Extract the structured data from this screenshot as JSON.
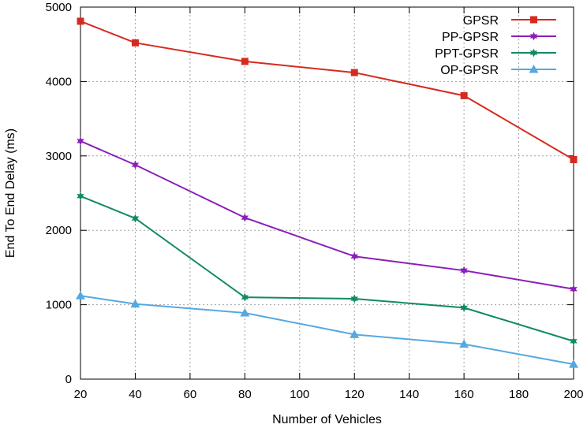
{
  "chart_data": {
    "type": "line",
    "title": "",
    "xlabel": "Number of Vehicles",
    "ylabel": "End To End Delay (ms)",
    "x_ticks": [
      20,
      40,
      60,
      80,
      100,
      120,
      140,
      160,
      180,
      200
    ],
    "xlim": [
      20,
      200
    ],
    "y_ticks": [
      0,
      1000,
      2000,
      3000,
      4000,
      5000
    ],
    "ylim": [
      0,
      5000
    ],
    "grid": true,
    "legend_position": "top-right",
    "series": [
      {
        "name": "GPSR",
        "color": "#d62a1e",
        "marker": "square",
        "x": [
          20,
          40,
          80,
          120,
          160,
          200
        ],
        "values": [
          4810,
          4520,
          4270,
          4120,
          3810,
          2950
        ]
      },
      {
        "name": "PP-GPSR",
        "color": "#8a1fb8",
        "marker": "star",
        "x": [
          20,
          40,
          80,
          120,
          160,
          200
        ],
        "values": [
          3200,
          2880,
          2170,
          1650,
          1460,
          1210
        ]
      },
      {
        "name": "PPT-GPSR",
        "color": "#108a65",
        "marker": "star",
        "x": [
          20,
          40,
          80,
          120,
          160,
          200
        ],
        "values": [
          2460,
          2160,
          1100,
          1080,
          960,
          510
        ]
      },
      {
        "name": "OP-GPSR",
        "color": "#55a8e0",
        "marker": "triangle",
        "x": [
          20,
          40,
          80,
          120,
          160,
          200
        ],
        "values": [
          1120,
          1010,
          890,
          600,
          470,
          200
        ]
      }
    ]
  }
}
